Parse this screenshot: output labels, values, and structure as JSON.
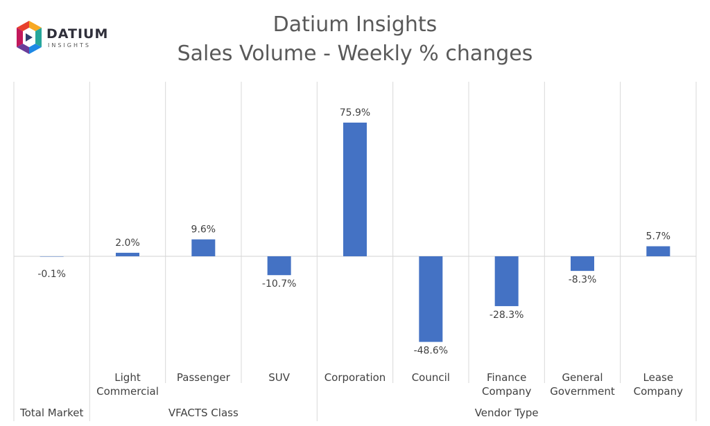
{
  "logo": {
    "name": "DATIUM",
    "tagline": "INSIGHTS"
  },
  "chart_data": {
    "type": "bar",
    "title": "Datium Insights",
    "subtitle": "Sales Volume - Weekly % changes",
    "categories": [
      "",
      "Light Commercial",
      "Passenger",
      "SUV",
      "Corporation",
      "Council",
      "Finance Company",
      "General Government",
      "Lease Company"
    ],
    "category_lines": [
      [
        ""
      ],
      [
        "Light",
        "Commercial"
      ],
      [
        "Passenger"
      ],
      [
        "SUV"
      ],
      [
        "Corporation"
      ],
      [
        "Council"
      ],
      [
        "Finance",
        "Company"
      ],
      [
        "General",
        "Government"
      ],
      [
        "Lease",
        "Company"
      ]
    ],
    "groups": [
      {
        "name": "Total Market",
        "span": 1
      },
      {
        "name": "VFACTS Class",
        "span": 3
      },
      {
        "name": "Vendor Type",
        "span": 5
      }
    ],
    "values": [
      -0.1,
      2.0,
      9.6,
      -10.7,
      75.9,
      -48.6,
      -28.3,
      -8.3,
      5.7
    ],
    "value_labels": [
      "-0.1%",
      "2.0%",
      "9.6%",
      "-10.7%",
      "75.9%",
      "-48.6%",
      "-28.3%",
      "-8.3%",
      "5.7%"
    ],
    "ylim": [
      -50,
      100
    ],
    "grid": false,
    "bar_color": "#4472C4",
    "axis_color": "#d9d9d9"
  }
}
